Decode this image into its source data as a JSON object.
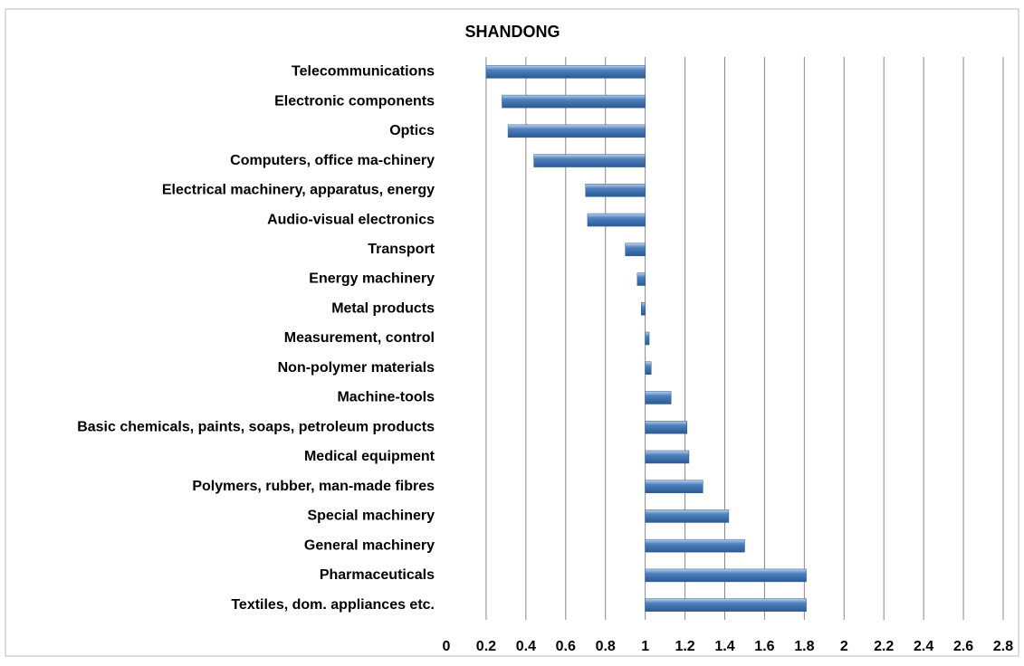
{
  "chart_data": {
    "type": "bar",
    "orientation": "horizontal",
    "title": "SHANDONG",
    "categories": [
      "Telecommunications",
      "Electronic components",
      "Optics",
      "Computers, office ma-chinery",
      "Electrical machinery, apparatus, energy",
      "Audio-visual electronics",
      "Transport",
      "Energy machinery",
      "Metal products",
      "Measurement, control",
      "Non-polymer materials",
      "Machine-tools",
      "Basic chemicals, paints, soaps, petroleum products",
      "Medical equipment",
      "Polymers, rubber, man-made fibres",
      "Special machinery",
      "General machinery",
      "Pharmaceuticals",
      "Textiles, dom. appliances etc."
    ],
    "values": [
      0.2,
      0.28,
      0.31,
      0.44,
      0.7,
      0.71,
      0.9,
      0.96,
      0.98,
      1.02,
      1.03,
      1.13,
      1.21,
      1.22,
      1.29,
      1.42,
      1.5,
      1.81,
      1.81
    ],
    "color": "#4f81bd",
    "bar_base": 1,
    "xlim": [
      0,
      2.8
    ],
    "xticks": [
      0,
      0.2,
      0.4,
      0.6,
      0.8,
      1,
      1.2,
      1.4,
      1.6,
      1.8,
      2,
      2.2,
      2.4,
      2.6,
      2.8
    ],
    "grid": true
  }
}
